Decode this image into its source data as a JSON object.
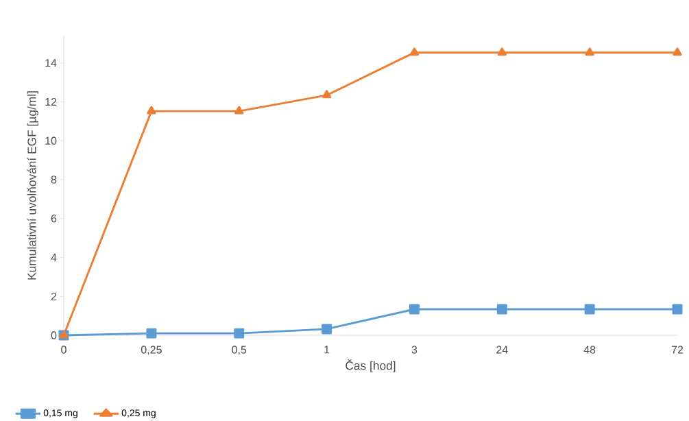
{
  "chart_data": {
    "type": "line",
    "xlabel": "Čas [hod]",
    "ylabel": "Kumulativní uvolňování EGF [µg/ml]",
    "categories": [
      "0",
      "0,25",
      "0,5",
      "1",
      "3",
      "24",
      "48",
      "72"
    ],
    "series": [
      {
        "name": "0,15 mg",
        "color": "#5b9bd5",
        "marker": "square",
        "values": [
          0,
          0.1,
          0.1,
          0.32,
          1.34,
          1.34,
          1.34,
          1.34
        ]
      },
      {
        "name": "0,25 mg",
        "color": "#ed7d31",
        "marker": "triangle",
        "values": [
          0,
          11.52,
          11.52,
          12.34,
          14.53,
          14.53,
          14.53,
          14.53
        ]
      }
    ],
    "ylim": [
      0,
      15.4
    ],
    "yticks": [
      0,
      2,
      4,
      6,
      8,
      10,
      12,
      14
    ],
    "grid": false,
    "legend": "bottom left",
    "line_style": "solid"
  }
}
